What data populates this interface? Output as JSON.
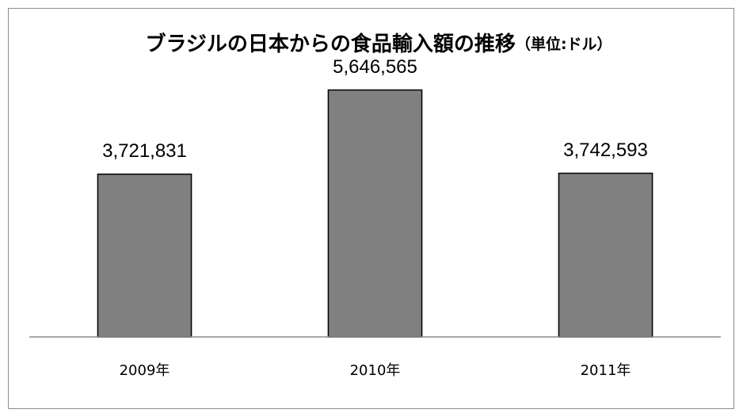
{
  "chart_data": {
    "type": "bar",
    "title": "ブラジルの日本からの食品輸入額の推移",
    "subtitle": "（単位:ドル）",
    "categories": [
      "2009年",
      "2010年",
      "2011年"
    ],
    "values": [
      3721831,
      5646565,
      3742593
    ],
    "value_labels": [
      "3,721,831",
      "5,646,565",
      "3,742,593"
    ],
    "color": "#808080",
    "ylim": [
      0,
      6000000
    ]
  }
}
